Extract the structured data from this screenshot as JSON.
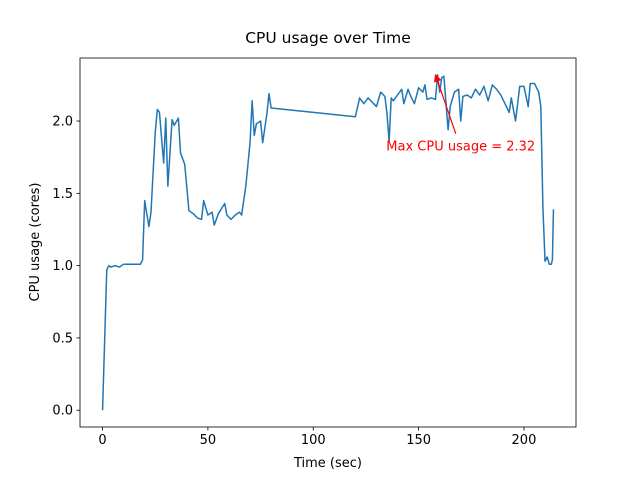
{
  "chart_data": {
    "type": "line",
    "title": "CPU usage over Time",
    "xlabel": "Time (sec)",
    "ylabel": "CPU usage (cores)",
    "color": "#1f77b4",
    "x": [
      0,
      2,
      3,
      4,
      6,
      8,
      10,
      12,
      14,
      16,
      18,
      19,
      20,
      22,
      23,
      25,
      26,
      27,
      29,
      30,
      31,
      33,
      34,
      36,
      37,
      39,
      41,
      43,
      45,
      47,
      48,
      50,
      52,
      53,
      55,
      58,
      59,
      61,
      63,
      65,
      66,
      68,
      70,
      71,
      72,
      73,
      75,
      76,
      78,
      79,
      80,
      120,
      122,
      124,
      126,
      128,
      130,
      132,
      134,
      135,
      136,
      137,
      138,
      140,
      142,
      143,
      145,
      146,
      148,
      150,
      152,
      153,
      154,
      156,
      158,
      159,
      160,
      161,
      162,
      164,
      165,
      167,
      169,
      170,
      171,
      173,
      175,
      177,
      179,
      181,
      183,
      185,
      187,
      189,
      191,
      193,
      194,
      196,
      198,
      200,
      202,
      203,
      205,
      207,
      208,
      209,
      210,
      211,
      212,
      213,
      213.5,
      214
    ],
    "values": [
      0,
      0.97,
      1.0,
      0.99,
      1.0,
      0.99,
      1.01,
      1.01,
      1.01,
      1.01,
      1.01,
      1.04,
      1.45,
      1.27,
      1.37,
      1.92,
      2.08,
      2.06,
      1.71,
      2.02,
      1.55,
      2.01,
      1.97,
      2.02,
      1.78,
      1.7,
      1.38,
      1.36,
      1.33,
      1.32,
      1.45,
      1.35,
      1.37,
      1.28,
      1.36,
      1.43,
      1.35,
      1.32,
      1.35,
      1.37,
      1.35,
      1.55,
      1.85,
      2.14,
      1.9,
      1.98,
      2.0,
      1.85,
      2.05,
      2.19,
      2.09,
      2.03,
      2.16,
      2.12,
      2.16,
      2.13,
      2.1,
      2.2,
      2.17,
      2.05,
      1.86,
      2.16,
      2.14,
      2.18,
      2.22,
      2.12,
      2.22,
      2.18,
      2.12,
      2.23,
      2.2,
      2.25,
      2.15,
      2.16,
      2.15,
      2.32,
      2.2,
      2.3,
      2.31,
      1.94,
      2.1,
      2.2,
      2.22,
      2.0,
      2.17,
      2.18,
      2.16,
      2.22,
      2.18,
      2.24,
      2.14,
      2.25,
      2.22,
      2.18,
      2.12,
      2.06,
      2.16,
      2.0,
      2.24,
      2.24,
      2.1,
      2.26,
      2.26,
      2.2,
      2.1,
      1.4,
      1.03,
      1.06,
      1.01,
      1.01,
      1.04,
      1.39
    ],
    "xlim": [
      -10.7,
      224.7
    ],
    "xticks": [
      0,
      50,
      100,
      150,
      200
    ],
    "ylim": [
      -0.116,
      2.436
    ],
    "yticks": [
      {
        "value": 0,
        "label": "0.0"
      },
      0.5,
      {
        "value": 1,
        "label": "1.0"
      },
      1.5,
      {
        "value": 2,
        "label": "2.0"
      }
    ],
    "annotations": [
      {
        "text": "Max CPU usage = 2.32",
        "xy": [
          158,
          2.32
        ],
        "xytext": [
          170,
          1.83
        ],
        "color": "red"
      }
    ]
  }
}
